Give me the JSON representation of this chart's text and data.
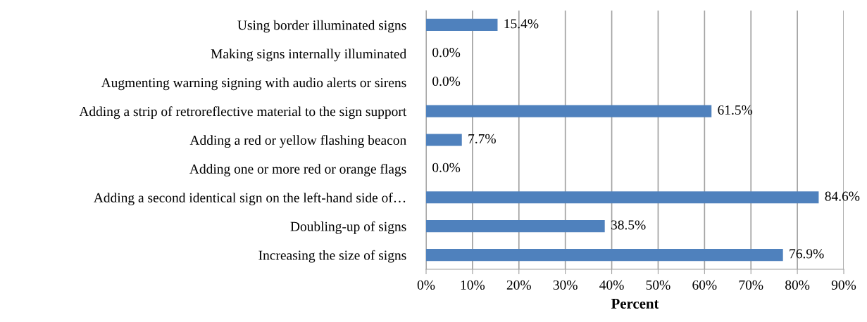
{
  "chart_data": {
    "type": "bar",
    "orientation": "horizontal",
    "xlabel": "Percent",
    "categories": [
      "Using border illuminated signs",
      "Making signs internally illuminated",
      "Augmenting warning signing with audio alerts or sirens",
      "Adding a strip of retroreflective material to the sign support",
      "Adding a red or yellow flashing beacon",
      "Adding one or more red or orange flags",
      "Adding a second identical sign on the left-hand side of…",
      "Doubling-up of signs",
      "Increasing the size of signs"
    ],
    "values": [
      15.4,
      0.0,
      0.0,
      61.5,
      7.7,
      0.0,
      84.6,
      38.5,
      76.9
    ],
    "value_labels": [
      "15.4%",
      "0.0%",
      "0.0%",
      "61.5%",
      "7.7%",
      "0.0%",
      "84.6%",
      "38.5%",
      "76.9%"
    ],
    "color": "#4f81bd",
    "xlim": [
      0,
      90
    ],
    "xticks": [
      {
        "value": 0,
        "label": "0%"
      },
      {
        "value": 10,
        "label": "10%"
      },
      {
        "value": 20,
        "label": "20%"
      },
      {
        "value": 30,
        "label": "30%"
      },
      {
        "value": 40,
        "label": "40%"
      },
      {
        "value": 50,
        "label": "50%"
      },
      {
        "value": 60,
        "label": "60%"
      },
      {
        "value": 70,
        "label": "70%"
      },
      {
        "value": 80,
        "label": "80%"
      },
      {
        "value": 90,
        "label": "90%"
      }
    ],
    "grid": "x"
  }
}
